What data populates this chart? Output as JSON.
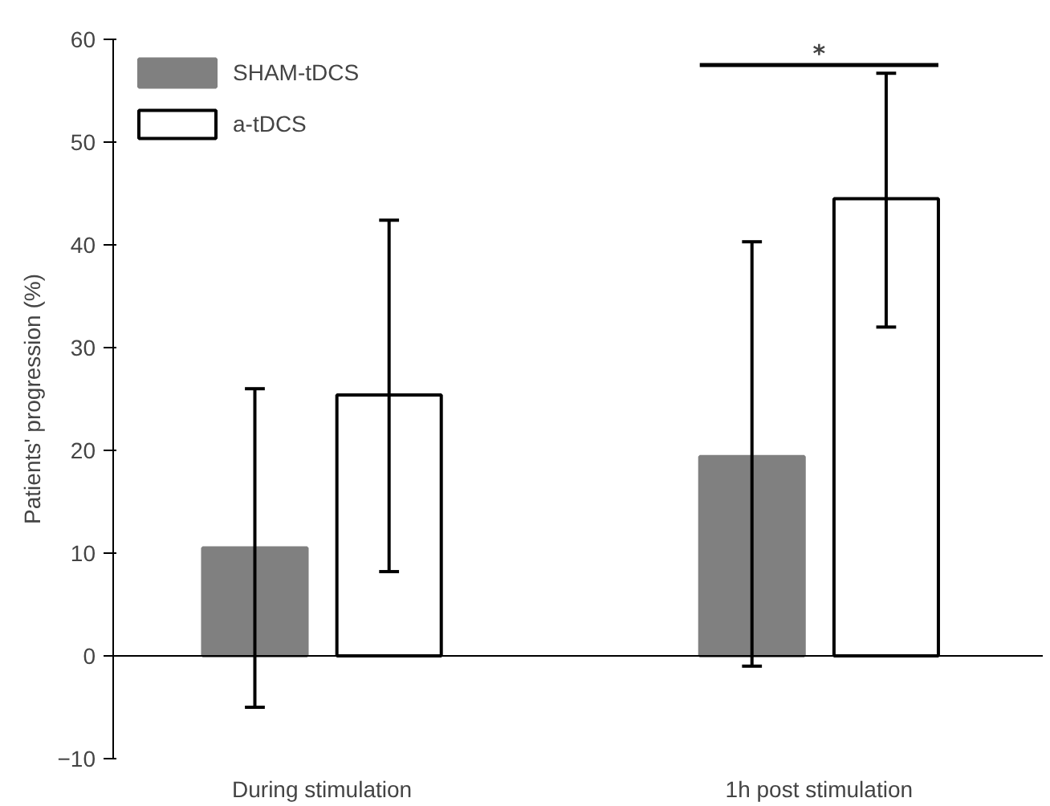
{
  "chart_data": {
    "type": "bar",
    "ylabel": "Patients' progression (%)",
    "categories": [
      "During stimulation",
      "1h post stimulation"
    ],
    "series": [
      {
        "name": "SHAM-tDCS",
        "color": "#808080",
        "values": [
          10.5,
          19.4
        ],
        "errors": [
          [
            -5,
            26
          ],
          [
            -1,
            40.3
          ]
        ]
      },
      {
        "name": "a-tDCS",
        "color": "#ffffff",
        "values": [
          25.4,
          44.5
        ],
        "errors": [
          [
            8.2,
            42.4
          ],
          [
            32,
            56.7
          ]
        ]
      }
    ],
    "ylim": [
      -10,
      60
    ],
    "yticks": [
      -10,
      0,
      10,
      20,
      30,
      40,
      50,
      60
    ],
    "ref_lines": [
      {
        "axis": "y",
        "value": 0
      }
    ],
    "annotations": [
      "*"
    ],
    "legend": "top left",
    "grid": false
  }
}
